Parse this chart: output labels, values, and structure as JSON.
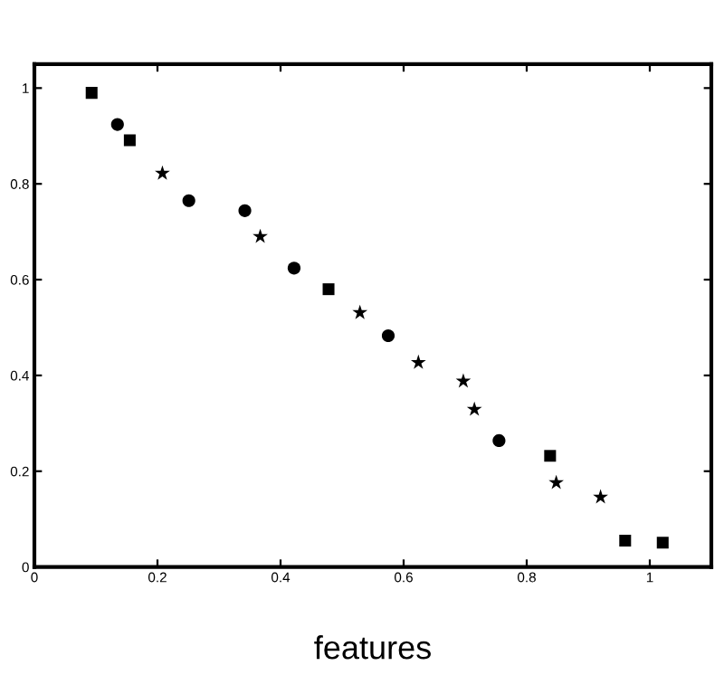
{
  "chart_data": {
    "type": "scatter",
    "xlabel": "features",
    "xlim": [
      0,
      1.1
    ],
    "ylim": [
      0,
      1.05
    ],
    "xticks": [
      0,
      0.2,
      0.4,
      0.6,
      0.8,
      1
    ],
    "yticks": [
      0,
      0.2,
      0.4,
      0.6,
      0.8,
      1
    ],
    "grid": false,
    "legend": false,
    "series": [
      {
        "color": "#000000",
        "marker": "square",
        "x": [
          0.093,
          0.155,
          0.478,
          0.838,
          0.96,
          1.021
        ],
        "values": [
          0.99,
          0.891,
          0.58,
          0.232,
          0.055,
          0.051
        ]
      },
      {
        "color": "#000000",
        "marker": "circle",
        "x": [
          0.135,
          0.251,
          0.342,
          0.422,
          0.575,
          0.755
        ],
        "values": [
          0.924,
          0.765,
          0.744,
          0.624,
          0.483,
          0.264
        ]
      },
      {
        "color": "#000000",
        "marker": "star",
        "x": [
          0.208,
          0.367,
          0.529,
          0.624,
          0.697,
          0.715,
          0.848,
          0.92
        ],
        "values": [
          0.822,
          0.69,
          0.531,
          0.427,
          0.388,
          0.329,
          0.176,
          0.146
        ]
      }
    ]
  }
}
